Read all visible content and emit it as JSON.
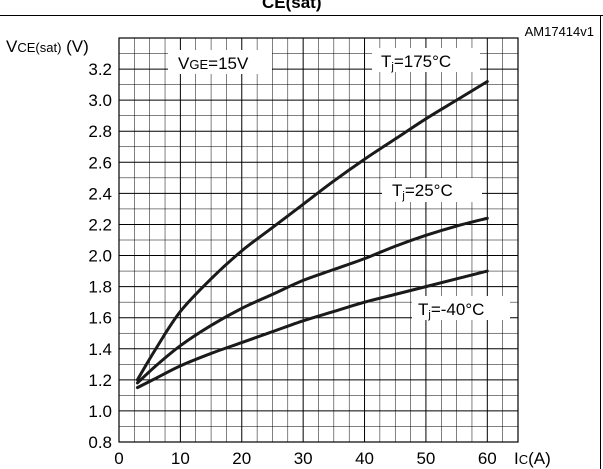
{
  "figure": {
    "header_fragment": "CE(sat)",
    "figure_id": "AM17414v1"
  },
  "chart_data": {
    "type": "line",
    "ylabel": {
      "main": "V",
      "sub": "CE(sat)",
      "unit": " (V)"
    },
    "xlabel": {
      "main": "I",
      "sub": "C",
      "unit": "(A)"
    },
    "annotation": {
      "main": "V",
      "sub": "GE",
      "value": "=15V"
    },
    "xlim": [
      0,
      65
    ],
    "ylim": [
      0.8,
      3.4
    ],
    "x_ticks": [
      0,
      10,
      20,
      30,
      40,
      50,
      60
    ],
    "y_ticks": [
      0.8,
      1.0,
      1.2,
      1.4,
      1.6,
      1.8,
      2.0,
      2.2,
      2.4,
      2.6,
      2.8,
      3.0,
      3.2
    ],
    "grid": true,
    "series": [
      {
        "name": "Tj=175°C",
        "label": {
          "main": "T",
          "sub": "j",
          "value": "=175°C"
        },
        "x": [
          3,
          6,
          10,
          15,
          20,
          25,
          30,
          35,
          40,
          45,
          50,
          55,
          60
        ],
        "y": [
          1.2,
          1.4,
          1.64,
          1.85,
          2.03,
          2.18,
          2.33,
          2.48,
          2.62,
          2.75,
          2.88,
          3.0,
          3.12
        ]
      },
      {
        "name": "Tj=25°C",
        "label": {
          "main": "T",
          "sub": "j",
          "value": "=25°C"
        },
        "x": [
          3,
          6,
          10,
          15,
          20,
          25,
          30,
          35,
          40,
          45,
          50,
          55,
          60
        ],
        "y": [
          1.18,
          1.29,
          1.42,
          1.55,
          1.66,
          1.75,
          1.84,
          1.91,
          1.98,
          2.06,
          2.13,
          2.19,
          2.24
        ]
      },
      {
        "name": "Tj=-40°C",
        "label": {
          "main": "T",
          "sub": "j",
          "value": "=-40°C"
        },
        "x": [
          3,
          6,
          10,
          15,
          20,
          25,
          30,
          35,
          40,
          45,
          50,
          55,
          60
        ],
        "y": [
          1.15,
          1.21,
          1.29,
          1.37,
          1.44,
          1.51,
          1.58,
          1.64,
          1.7,
          1.75,
          1.8,
          1.85,
          1.9
        ]
      }
    ]
  }
}
